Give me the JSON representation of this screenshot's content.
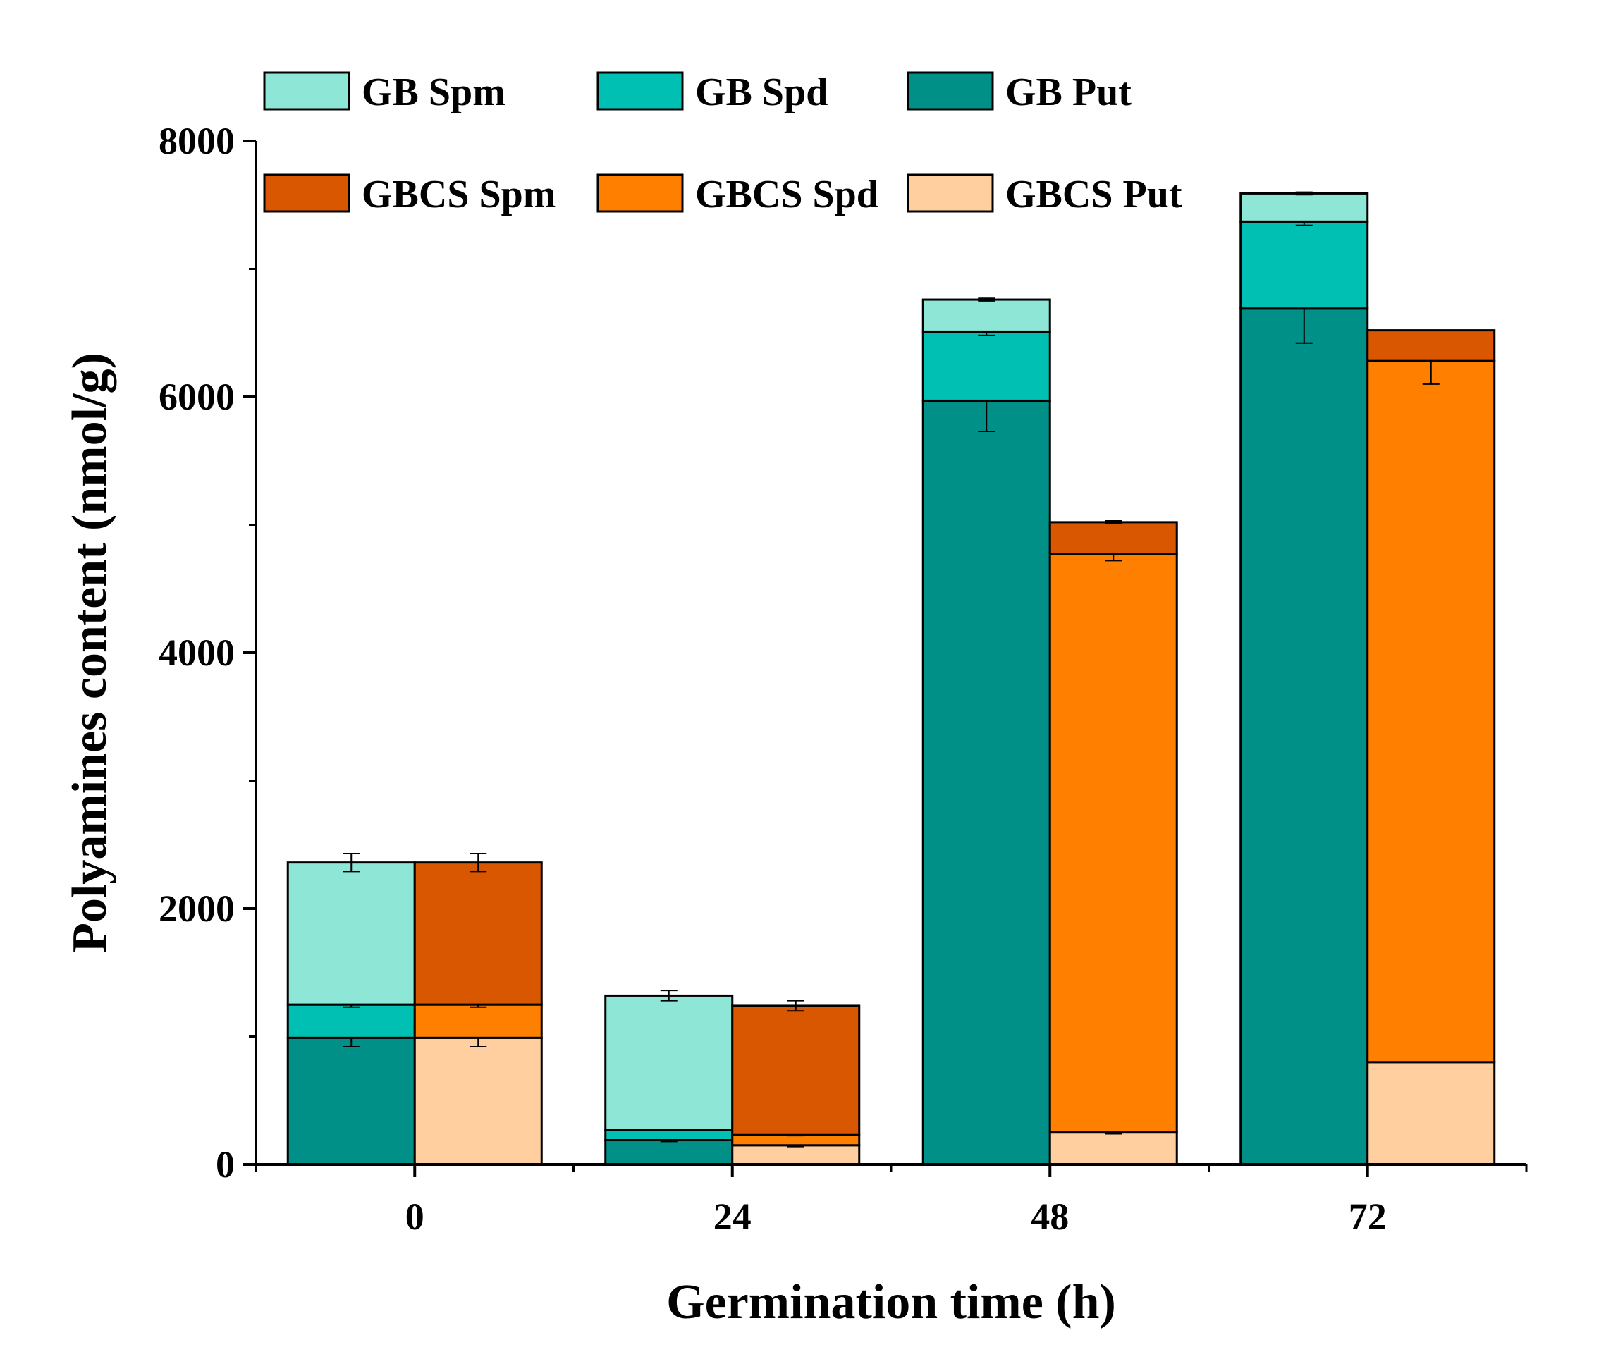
{
  "chart_data": {
    "type": "bar",
    "stacked": true,
    "grouped": true,
    "xlabel": "Germination time (h)",
    "ylabel": "Polyamines content (nmol/g)",
    "ylim": [
      0,
      8000
    ],
    "yticks": [
      "0",
      "2000",
      "4000",
      "6000",
      "8000"
    ],
    "categories": [
      "0",
      "24",
      "48",
      "72"
    ],
    "groups": [
      {
        "name": "GB",
        "series": [
          {
            "name": "GB Put",
            "color": "#009088",
            "values": [
              990,
              190,
              5970,
              6690
            ],
            "errors": [
              70,
              10,
              240,
              270
            ]
          },
          {
            "name": "GB Spd",
            "color": "#00BFB3",
            "values": [
              260,
              80,
              540,
              680
            ],
            "errors": [
              20,
              5,
              30,
              30
            ]
          },
          {
            "name": "GB Spm",
            "color": "#8EE6D6",
            "values": [
              1110,
              1050,
              250,
              220
            ],
            "errors": [
              70,
              40,
              10,
              10
            ]
          }
        ]
      },
      {
        "name": "GBCS",
        "series": [
          {
            "name": "GBCS Put",
            "color": "#FFCFA0",
            "values": [
              990,
              150,
              250,
              800
            ],
            "errors": [
              70,
              10,
              10,
              0
            ]
          },
          {
            "name": "GBCS Spd",
            "color": "#FF7F00",
            "values": [
              260,
              80,
              4520,
              5480
            ],
            "errors": [
              20,
              5,
              50,
              180
            ]
          },
          {
            "name": "GBCS Spm",
            "color": "#D95700",
            "values": [
              1110,
              1010,
              250,
              240
            ],
            "errors": [
              70,
              40,
              10,
              0
            ]
          }
        ]
      }
    ],
    "legend": {
      "placement": "top-left",
      "rows": [
        [
          "GB Spm",
          "GB Spd",
          "GB Put"
        ],
        [
          "GBCS Spm",
          "GBCS Spd",
          "GBCS Put"
        ]
      ]
    }
  }
}
